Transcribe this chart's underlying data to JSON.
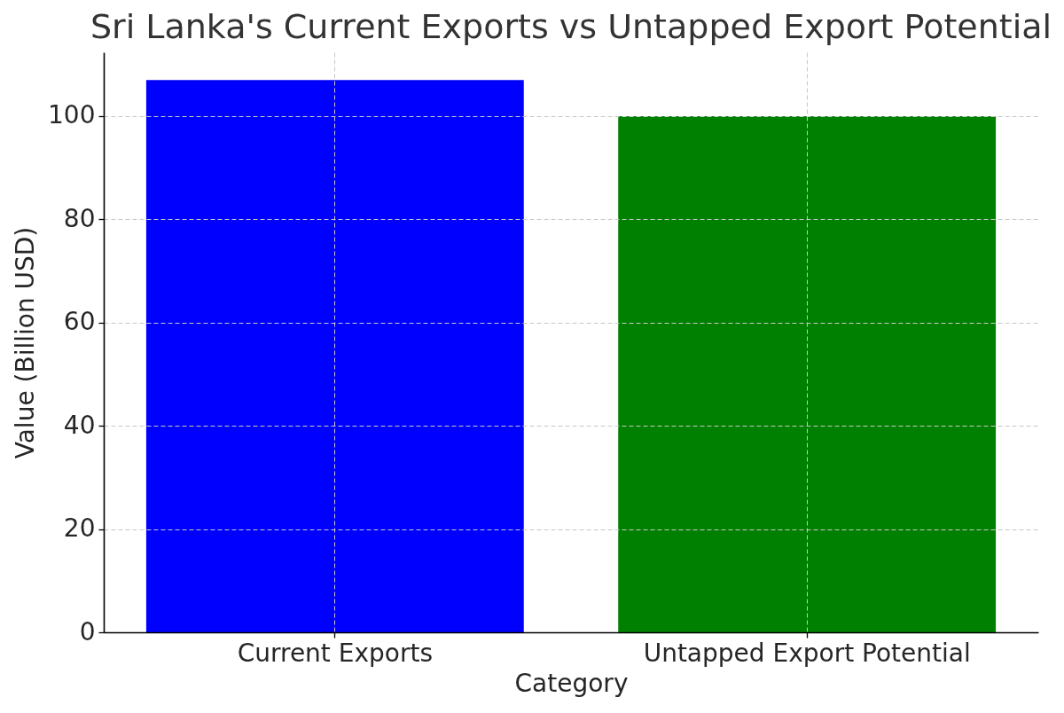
{
  "chart_data": {
    "type": "bar",
    "title": "Sri Lanka's Current Exports vs Untapped Export Potential",
    "xlabel": "Category",
    "ylabel": "Value (Billion USD)",
    "categories": [
      "Current Exports",
      "Untapped Export Potential"
    ],
    "values": [
      107,
      100
    ],
    "colors": [
      "#0000ff",
      "#008000"
    ],
    "ylim": [
      0,
      112.35
    ],
    "yticks": [
      0,
      20,
      40,
      60,
      80,
      100
    ],
    "grid": true
  }
}
